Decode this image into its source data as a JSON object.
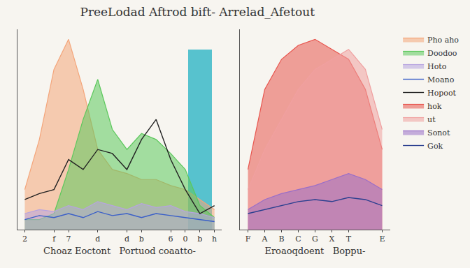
{
  "chart_data": [
    {
      "type": "area",
      "title": "PreeLodad Aftrod bift- Arrelad_Afetout",
      "xlabel": "Choaz Eoctont   Portuod coaatto-",
      "categories": [
        "2",
        null,
        "f",
        "7",
        null,
        "d",
        null,
        "d",
        "b",
        null,
        "6",
        "0",
        "b",
        "h"
      ],
      "ylim": [
        0,
        100
      ],
      "tick_labels": "x",
      "grid": false,
      "series": [
        {
          "name": "Pho aho",
          "color": "#f4a57a",
          "values": [
            20,
            45,
            80,
            95,
            70,
            40,
            30,
            28,
            25,
            25,
            22,
            20,
            15,
            10
          ]
        },
        {
          "name": "Doodoo",
          "color": "#5cc85c",
          "values": [
            5,
            5,
            8,
            30,
            55,
            75,
            50,
            40,
            48,
            45,
            38,
            30,
            12,
            6
          ]
        },
        {
          "name": "Hoto",
          "color": "#b7a4e0",
          "values": [
            8,
            10,
            9,
            12,
            10,
            14,
            12,
            10,
            13,
            11,
            12,
            9,
            8,
            6
          ]
        },
        {
          "type": "bar",
          "color": "#3bb8c8",
          "values": [
            null,
            null,
            null,
            null,
            null,
            null,
            null,
            null,
            null,
            null,
            null,
            null,
            90,
            null
          ]
        },
        {
          "type": "line",
          "name": "Moano",
          "color": "#3a5fc8",
          "values": [
            5,
            7,
            6,
            8,
            6,
            9,
            7,
            8,
            6,
            8,
            7,
            6,
            5,
            4
          ]
        },
        {
          "type": "line",
          "name": "Hopoot",
          "color": "#222222",
          "values": [
            15,
            18,
            20,
            35,
            30,
            40,
            38,
            30,
            45,
            55,
            35,
            20,
            8,
            12
          ]
        }
      ]
    },
    {
      "type": "area",
      "xlabel": "Eroaoqdoent   Boppu-",
      "categories": [
        "F",
        "A",
        "B",
        "C",
        "G",
        "X",
        "T",
        null,
        "E"
      ],
      "ylim": [
        0,
        100
      ],
      "tick_labels": "x",
      "grid": false,
      "legend": "right",
      "series": [
        {
          "name": "hok",
          "color": "#e8554e",
          "values": [
            30,
            70,
            85,
            92,
            95,
            90,
            85,
            70,
            40
          ]
        },
        {
          "name": "ut",
          "color": "#f0a0a0",
          "values": [
            20,
            40,
            55,
            70,
            80,
            85,
            90,
            80,
            50
          ]
        },
        {
          "name": "Sonot",
          "color": "#9a6fc8",
          "values": [
            10,
            15,
            18,
            20,
            22,
            25,
            28,
            25,
            20
          ]
        },
        {
          "type": "line",
          "name": "Gok",
          "color": "#2a3f8f",
          "values": [
            8,
            10,
            12,
            14,
            15,
            14,
            16,
            15,
            12
          ]
        }
      ]
    }
  ]
}
